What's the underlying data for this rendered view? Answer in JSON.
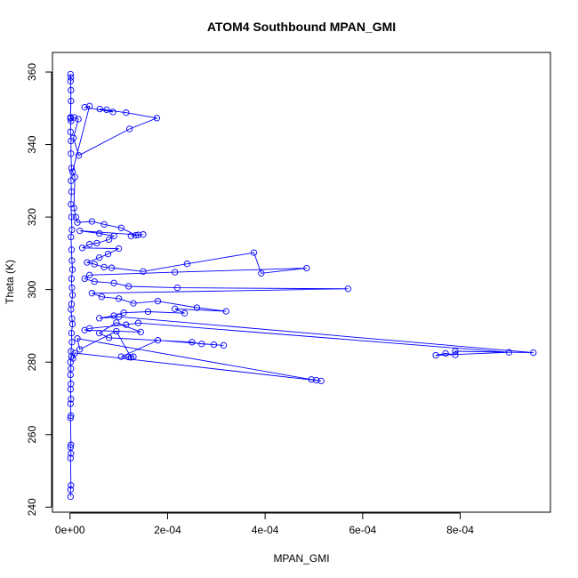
{
  "chart_data": {
    "type": "scatter",
    "title": "ATOM4 Southbound MPAN_GMI",
    "xlabel": "MPAN_GMI",
    "ylabel": "Theta (K)",
    "xlim": [
      -3.6e-05,
      0.000985
    ],
    "ylim": [
      238.6,
      365.4
    ],
    "x_ticks": [
      0,
      0.0002,
      0.0004,
      0.0006,
      0.0008
    ],
    "x_tick_labels": [
      "0e+00",
      "2e-04",
      "4e-04",
      "6e-04",
      "8e-04"
    ],
    "y_ticks": [
      240,
      260,
      280,
      300,
      320,
      340,
      360
    ],
    "y_tick_labels": [
      "240",
      "260",
      "280",
      "300",
      "320",
      "340",
      "360"
    ],
    "marker": "open-circle",
    "line": true,
    "color": "#0000ff",
    "series": [
      {
        "name": "MPAN_GMI",
        "points": [
          [
            1e-06,
            242.9
          ],
          [
            1e-06,
            244.8
          ],
          [
            2e-06,
            246.0
          ],
          [
            1e-06,
            253.5
          ],
          [
            2e-06,
            254.8
          ],
          [
            1e-06,
            256.5
          ],
          [
            2e-06,
            257.2
          ],
          [
            1e-06,
            264.6
          ],
          [
            2e-06,
            265.2
          ],
          [
            1e-06,
            268.5
          ],
          [
            2e-06,
            269.8
          ],
          [
            1e-06,
            272.5
          ],
          [
            2e-06,
            274.0
          ],
          [
            1e-06,
            276.5
          ],
          [
            2e-06,
            278.2
          ],
          [
            1e-06,
            280.0
          ],
          [
            3e-06,
            281.5
          ],
          [
            2e-06,
            283.0
          ],
          [
            4e-06,
            285.5
          ],
          [
            3e-06,
            288.0
          ],
          [
            5e-06,
            290.5
          ],
          [
            4e-06,
            292.0
          ],
          [
            2e-06,
            294.5
          ],
          [
            3e-06,
            296.0
          ],
          [
            5e-06,
            298.5
          ],
          [
            4e-06,
            300.5
          ],
          [
            3e-06,
            303.0
          ],
          [
            5e-06,
            305.5
          ],
          [
            4e-06,
            308.0
          ],
          [
            3e-06,
            311.0
          ],
          [
            2e-06,
            314.5
          ],
          [
            4e-06,
            316.5
          ],
          [
            3e-06,
            320.0
          ],
          [
            2e-06,
            323.5
          ],
          [
            3e-06,
            327.0
          ],
          [
            2e-06,
            330.0
          ],
          [
            3e-06,
            333.5
          ],
          [
            2e-06,
            337.5
          ],
          [
            2e-06,
            341.0
          ],
          [
            1e-06,
            343.5
          ],
          [
            2e-06,
            346.5
          ],
          [
            1e-06,
            347.5
          ],
          [
            2e-06,
            355.0
          ],
          [
            1e-06,
            357.5
          ],
          [
            2e-06,
            358.5
          ],
          [
            1e-06,
            359.4
          ],
          [
            2e-06,
            352.0
          ],
          [
            1e-06,
            347.2
          ],
          [
            8e-06,
            347.5
          ],
          [
            1.7e-05,
            347.0
          ],
          [
            7e-06,
            341.8
          ],
          [
            1.8e-05,
            337.0
          ],
          [
            0.000122,
            344.3
          ],
          [
            0.000178,
            347.3
          ],
          [
            0.000115,
            348.8
          ],
          [
            6.1e-05,
            349.8
          ],
          [
            7.5e-05,
            349.6
          ],
          [
            8.8e-05,
            349.0
          ],
          [
            3e-05,
            350.3
          ],
          [
            4e-05,
            350.6
          ],
          [
            5e-06,
            332.5
          ],
          [
            1e-05,
            331.0
          ],
          [
            8e-06,
            322.5
          ],
          [
            1.2e-05,
            320.0
          ],
          [
            1.5e-05,
            318.5
          ],
          [
            4.5e-05,
            318.8
          ],
          [
            7e-05,
            318.0
          ],
          [
            0.000105,
            317.0
          ],
          [
            0.000135,
            315.0
          ],
          [
            0.00015,
            315.2
          ],
          [
            0.000125,
            314.8
          ],
          [
            0.00014,
            315.1
          ],
          [
            2e-05,
            316.2
          ],
          [
            6e-05,
            315.5
          ],
          [
            9e-05,
            314.8
          ],
          [
            8e-05,
            313.8
          ],
          [
            5.5e-05,
            312.8
          ],
          [
            4e-05,
            312.5
          ],
          [
            2.5e-05,
            311.5
          ],
          [
            0.0001,
            311.3
          ],
          [
            7.8e-05,
            309.8
          ],
          [
            6e-05,
            308.8
          ],
          [
            3.5e-05,
            307.5
          ],
          [
            5e-05,
            307.0
          ],
          [
            7e-05,
            306.2
          ],
          [
            8.5e-05,
            306.0
          ],
          [
            0.00015,
            305.0
          ],
          [
            0.00024,
            307.1
          ],
          [
            0.000377,
            310.2
          ],
          [
            0.000392,
            304.5
          ],
          [
            0.000485,
            305.9
          ],
          [
            0.000215,
            304.8
          ],
          [
            4e-05,
            304.0
          ],
          [
            3e-05,
            303.0
          ],
          [
            5e-05,
            302.2
          ],
          [
            9e-05,
            301.8
          ],
          [
            0.00012,
            300.9
          ],
          [
            0.00022,
            300.5
          ],
          [
            0.00057,
            300.2
          ],
          [
            4.5e-05,
            299.0
          ],
          [
            6.5e-05,
            298.0
          ],
          [
            0.0001,
            297.5
          ],
          [
            0.00013,
            296.2
          ],
          [
            0.00018,
            296.8
          ],
          [
            0.00026,
            295.0
          ],
          [
            0.00032,
            294.0
          ],
          [
            0.000215,
            294.7
          ],
          [
            0.000235,
            293.5
          ],
          [
            0.00016,
            293.9
          ],
          [
            0.00011,
            293.6
          ],
          [
            9e-05,
            292.8
          ],
          [
            6e-05,
            292.1
          ],
          [
            0.0001,
            292.5
          ],
          [
            0.00095,
            282.6
          ],
          [
            0.00079,
            283.0
          ],
          [
            0.00079,
            282.0
          ],
          [
            0.00077,
            282.4
          ],
          [
            0.00075,
            281.9
          ],
          [
            0.0009,
            282.7
          ],
          [
            0.00014,
            290.8
          ],
          [
            0.000115,
            290.3
          ],
          [
            4e-05,
            289.3
          ],
          [
            3e-05,
            288.8
          ],
          [
            0.000145,
            288.3
          ],
          [
            9.5e-05,
            290.9
          ],
          [
            6e-05,
            288.0
          ],
          [
            8e-05,
            286.7
          ],
          [
            0.00025,
            285.5
          ],
          [
            0.00027,
            285.0
          ],
          [
            0.000295,
            284.8
          ],
          [
            0.000315,
            284.6
          ],
          [
            0.00018,
            286.0
          ],
          [
            0.000105,
            281.5
          ],
          [
            0.00012,
            281.4
          ],
          [
            0.00013,
            281.5
          ],
          [
            0.000125,
            281.3
          ],
          [
            9.5e-05,
            288.5
          ],
          [
            2e-05,
            283.5
          ],
          [
            1.5e-05,
            286.5
          ],
          [
            0.000495,
            275.2
          ],
          [
            0.000505,
            275.0
          ],
          [
            0.000515,
            274.8
          ],
          [
            1e-05,
            282.5
          ],
          [
            6e-06,
            281.0
          ]
        ]
      }
    ]
  }
}
